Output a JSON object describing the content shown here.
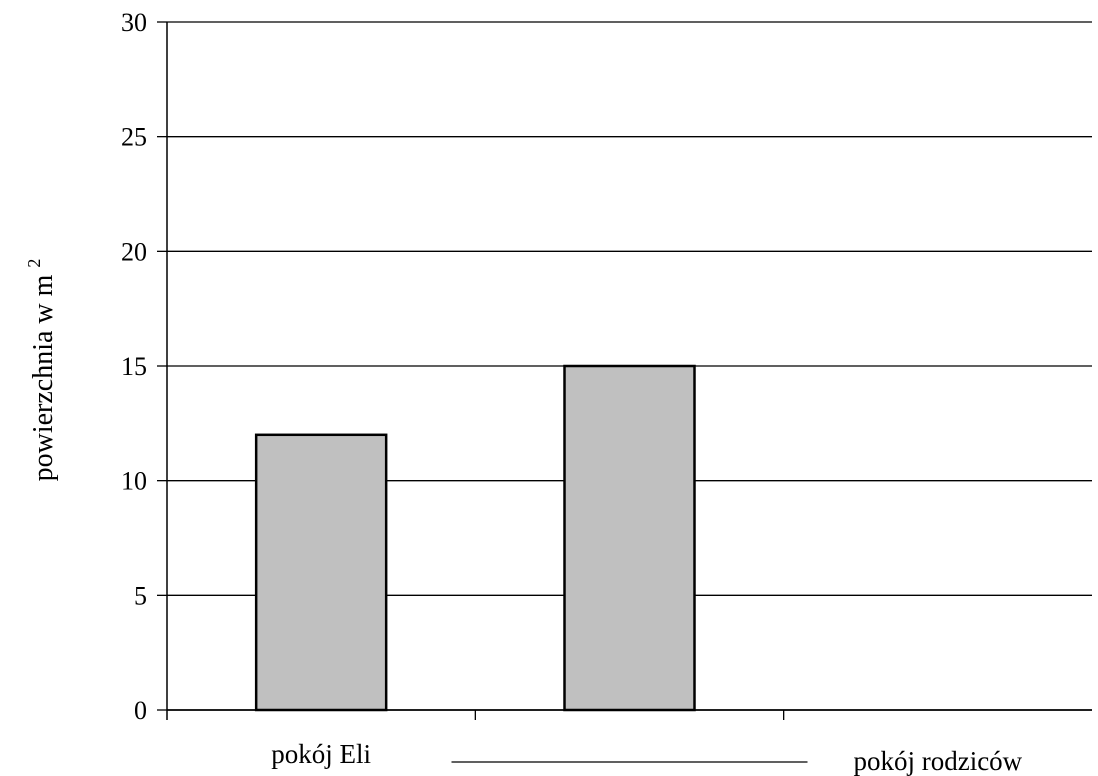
{
  "chart_data": {
    "type": "bar",
    "categories": [
      "pokój Eli",
      "",
      "pokój rodziców"
    ],
    "values": [
      12,
      15,
      null
    ],
    "title": "",
    "xlabel": "",
    "ylabel": "powierzchnia w m",
    "ylabel_superscript": "2",
    "ylim": [
      0,
      30
    ],
    "yticks": [
      "0",
      "5",
      "10",
      "15",
      "20",
      "25",
      "30"
    ],
    "grid": true,
    "legend": "none",
    "blank_category_line": true,
    "colors": {
      "bar_fill": "#c0c0c0",
      "bar_stroke": "#000000",
      "grid": "#000000",
      "background": "#ffffff"
    }
  }
}
